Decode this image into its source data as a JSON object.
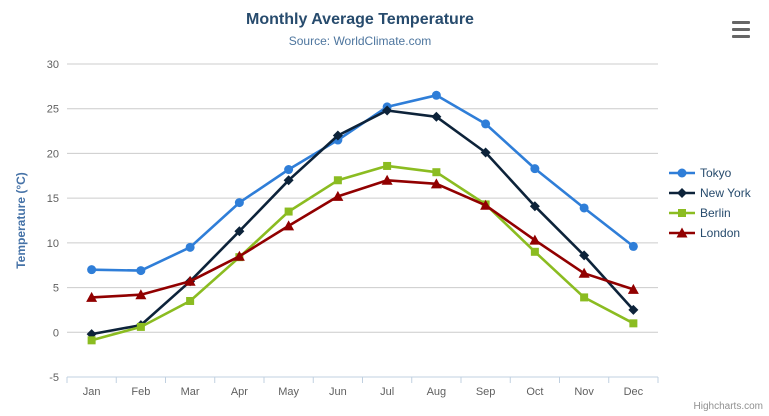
{
  "header": {
    "title": "Monthly Average Temperature",
    "subtitle": "Source: WorldClimate.com"
  },
  "credits_label": "Highcharts.com",
  "menu_icon": "hamburger-menu-icon",
  "chart_data": {
    "type": "line",
    "title": "Monthly Average Temperature",
    "subtitle": "Source: WorldClimate.com",
    "categories": [
      "Jan",
      "Feb",
      "Mar",
      "Apr",
      "May",
      "Jun",
      "Jul",
      "Aug",
      "Sep",
      "Oct",
      "Nov",
      "Dec"
    ],
    "series": [
      {
        "name": "Tokyo",
        "color": "#2f7ed8",
        "marker": "circle",
        "values": [
          7.0,
          6.9,
          9.5,
          14.5,
          18.2,
          21.5,
          25.2,
          26.5,
          23.3,
          18.3,
          13.9,
          9.6
        ]
      },
      {
        "name": "New York",
        "color": "#0d233a",
        "marker": "diamond",
        "values": [
          -0.2,
          0.8,
          5.7,
          11.3,
          17.0,
          22.0,
          24.8,
          24.1,
          20.1,
          14.1,
          8.6,
          2.5
        ]
      },
      {
        "name": "Berlin",
        "color": "#8bbc21",
        "marker": "square",
        "values": [
          -0.9,
          0.6,
          3.5,
          8.4,
          13.5,
          17.0,
          18.6,
          17.9,
          14.3,
          9.0,
          3.9,
          1.0
        ]
      },
      {
        "name": "London",
        "color": "#910000",
        "marker": "triangle",
        "values": [
          3.9,
          4.2,
          5.7,
          8.5,
          11.9,
          15.2,
          17.0,
          16.6,
          14.2,
          10.3,
          6.6,
          4.8
        ]
      }
    ],
    "xlabel": "",
    "ylabel": "Temperature (°C)",
    "ylim": [
      -5,
      30
    ],
    "ytick_interval": 5,
    "grid": true,
    "legend_position": "right"
  },
  "colors": {
    "title": "#274b6d",
    "subtitle": "#4d759e",
    "axis_label": "#606060",
    "yaxis_title": "#4572a7",
    "grid_line": "#cccccc",
    "axis_line": "#c0d0e0",
    "legend_text": "#274b6d",
    "credits": "#909090",
    "menu_bars": "#666666",
    "background": "#ffffff"
  }
}
